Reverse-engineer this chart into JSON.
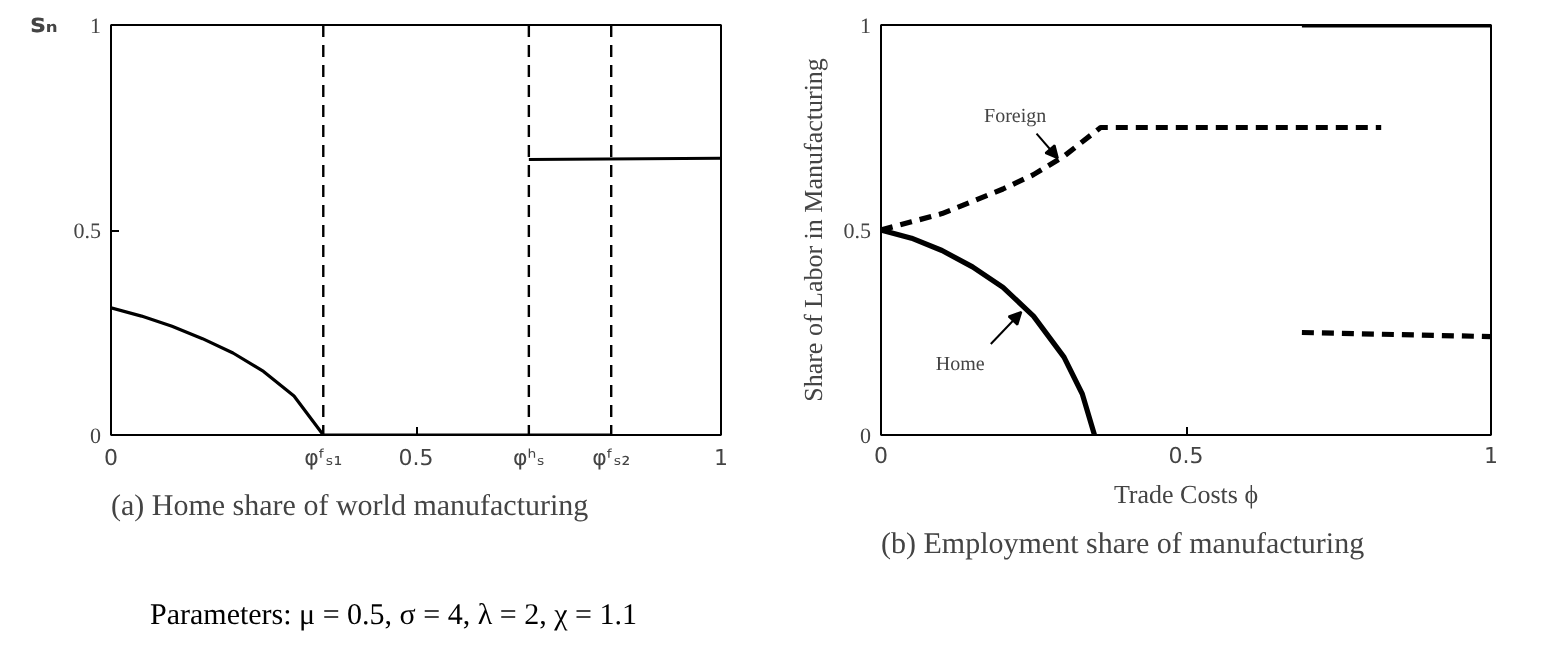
{
  "chart_data": [
    {
      "type": "line",
      "title": "(a) Home share of world manufacturing",
      "ylabel": "sₙ",
      "xlim": [
        0,
        1
      ],
      "ylim": [
        0,
        1
      ],
      "yticks": [
        0,
        0.5,
        1
      ],
      "xticks": [
        0,
        {
          "value": 0.348,
          "label": "φᶠₛ₁"
        },
        0.5,
        {
          "value": 0.685,
          "label": "φʰₛ"
        },
        {
          "value": 0.82,
          "label": "φᶠₛ₂"
        },
        1
      ],
      "grid": false,
      "ref_lines": [
        {
          "axis": "x",
          "value": 0.348,
          "line_style": "dashed",
          "color": "#000000"
        },
        {
          "axis": "x",
          "value": 0.685,
          "line_style": "dashed",
          "color": "#000000"
        },
        {
          "axis": "x",
          "value": 0.82,
          "line_style": "dashed",
          "color": "#000000"
        }
      ],
      "series": [
        {
          "color": "#000000",
          "line_style": "solid",
          "x": [
            0,
            0.05,
            0.1,
            0.15,
            0.2,
            0.25,
            0.3,
            0.348,
            0.82,
            0.75,
            0.685,
            1
          ],
          "values": [
            0.31,
            0.29,
            0.265,
            0.235,
            0.2,
            0.155,
            0.095,
            0,
            0,
            null,
            0.672,
            0.675
          ]
        }
      ],
      "annotations": [
        "Parameters: μ = 0.5, σ = 4, λ = 2, χ = 1.1"
      ]
    },
    {
      "type": "line",
      "title": "(b) Employment share of manufacturing",
      "xlabel": "Trade Costs ϕ",
      "ylabel": "Share of Labor in Manufacturing",
      "xlim": [
        0,
        1
      ],
      "ylim": [
        0,
        1
      ],
      "xticks": [
        0,
        0.5,
        1
      ],
      "yticks": [
        0,
        0.5,
        1
      ],
      "grid": false,
      "series": [
        {
          "color": "#000000",
          "line_style": "solid",
          "x": [
            0,
            0.05,
            0.1,
            0.15,
            0.2,
            0.25,
            0.3,
            0.33,
            0.35,
            0.5,
            0.69,
            1
          ],
          "values": [
            0.5,
            0.48,
            0.45,
            0.41,
            0.36,
            0.29,
            0.19,
            0.1,
            0,
            null,
            1,
            1
          ]
        },
        {
          "color": "#000000",
          "line_style": "dashed",
          "x": [
            0,
            0.05,
            0.1,
            0.15,
            0.2,
            0.25,
            0.3,
            0.36,
            0.82,
            0.75,
            0.69,
            1
          ],
          "values": [
            0.5,
            0.52,
            0.54,
            0.57,
            0.6,
            0.635,
            0.68,
            0.75,
            0.75,
            null,
            0.25,
            0.24
          ]
        }
      ],
      "annotations": [
        {
          "text": "Foreign",
          "x": 0.29,
          "y": 0.675
        },
        {
          "text": "Home",
          "x": 0.23,
          "y": 0.3
        }
      ]
    }
  ]
}
